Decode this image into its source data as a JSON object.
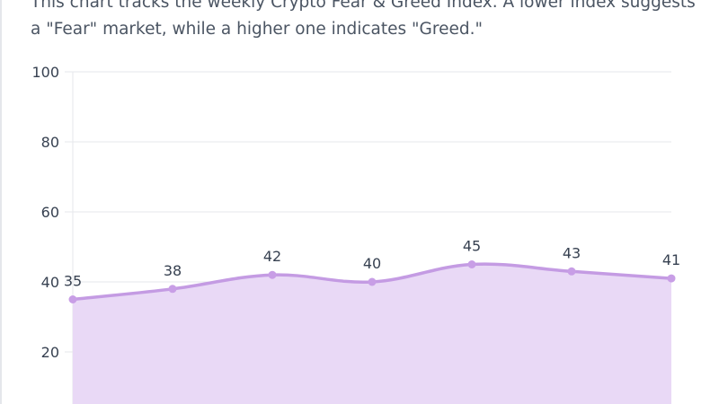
{
  "description": "This chart tracks the weekly Crypto Fear & Greed Index. A lower index suggests a \"Fear\" market, while a higher one indicates \"Greed.\"",
  "colors": {
    "line": "#c49be3",
    "fill": "#e9d9f6",
    "point": "#c89ee6",
    "grid": "#e5e7eb"
  },
  "chart_data": {
    "type": "area",
    "title": "",
    "xlabel": "",
    "ylabel": "",
    "ylim": [
      0,
      100
    ],
    "y_ticks": [
      20,
      40,
      60,
      80,
      100
    ],
    "grid": true,
    "smooth": true,
    "series": [
      {
        "values": [
          35,
          38,
          42,
          40,
          45,
          43,
          41
        ]
      }
    ]
  }
}
